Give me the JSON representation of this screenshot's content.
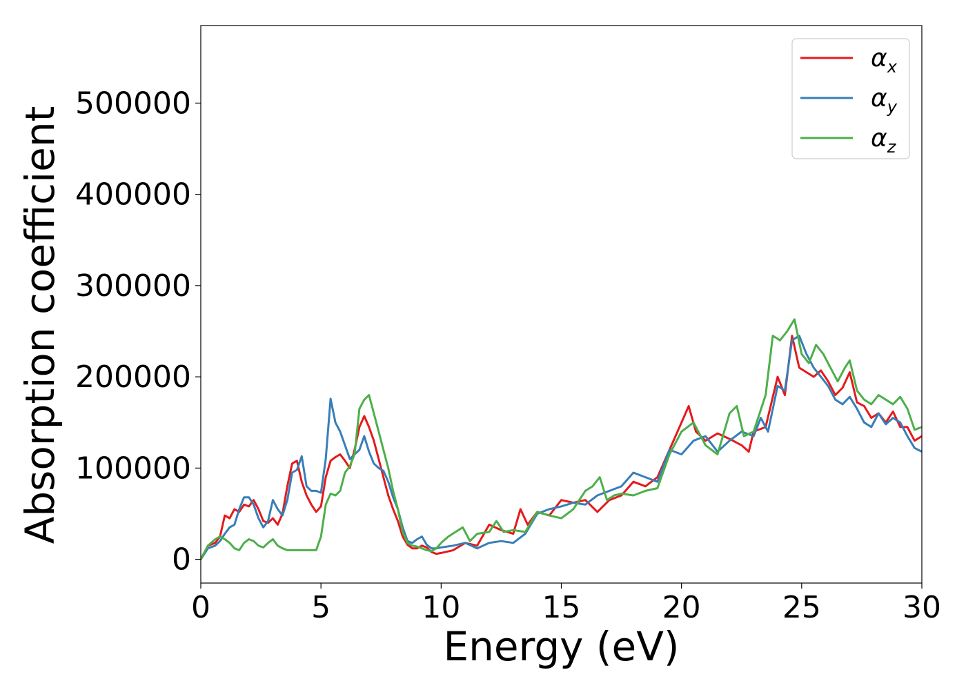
{
  "chart_data": {
    "type": "line",
    "title": "",
    "xlabel": "Energy (eV)",
    "ylabel": "Absorption coefficient",
    "xlim": [
      0,
      30
    ],
    "ylim": [
      -26000,
      585000
    ],
    "xticks": [
      0,
      5,
      10,
      15,
      20,
      25,
      30
    ],
    "yticks": [
      0,
      100000,
      200000,
      300000,
      400000,
      500000
    ],
    "grid": false,
    "legend_position": "top-right",
    "series": [
      {
        "name": "α",
        "subscript": "x",
        "color": "#e41a1c",
        "points": [
          [
            0,
            0
          ],
          [
            0.3,
            15000
          ],
          [
            0.6,
            18000
          ],
          [
            0.8,
            25000
          ],
          [
            1.0,
            48000
          ],
          [
            1.2,
            45000
          ],
          [
            1.4,
            55000
          ],
          [
            1.6,
            52000
          ],
          [
            1.8,
            60000
          ],
          [
            2.0,
            58000
          ],
          [
            2.2,
            65000
          ],
          [
            2.4,
            55000
          ],
          [
            2.6,
            42000
          ],
          [
            2.8,
            40000
          ],
          [
            3.0,
            45000
          ],
          [
            3.2,
            38000
          ],
          [
            3.4,
            50000
          ],
          [
            3.6,
            80000
          ],
          [
            3.8,
            105000
          ],
          [
            4.0,
            108000
          ],
          [
            4.2,
            85000
          ],
          [
            4.4,
            70000
          ],
          [
            4.6,
            60000
          ],
          [
            4.8,
            52000
          ],
          [
            5.0,
            58000
          ],
          [
            5.2,
            90000
          ],
          [
            5.4,
            108000
          ],
          [
            5.6,
            112000
          ],
          [
            5.8,
            115000
          ],
          [
            6.0,
            108000
          ],
          [
            6.2,
            100000
          ],
          [
            6.4,
            120000
          ],
          [
            6.6,
            145000
          ],
          [
            6.8,
            157000
          ],
          [
            7.0,
            145000
          ],
          [
            7.2,
            130000
          ],
          [
            7.4,
            110000
          ],
          [
            7.6,
            90000
          ],
          [
            7.8,
            70000
          ],
          [
            8.0,
            55000
          ],
          [
            8.2,
            42000
          ],
          [
            8.4,
            25000
          ],
          [
            8.6,
            16000
          ],
          [
            8.8,
            12000
          ],
          [
            9.0,
            12000
          ],
          [
            9.2,
            15000
          ],
          [
            9.4,
            13000
          ],
          [
            9.6,
            8000
          ],
          [
            9.8,
            6000
          ],
          [
            10.0,
            7000
          ],
          [
            10.5,
            10000
          ],
          [
            11.0,
            18000
          ],
          [
            11.5,
            15000
          ],
          [
            12.0,
            38000
          ],
          [
            12.5,
            32000
          ],
          [
            13.0,
            28000
          ],
          [
            13.3,
            55000
          ],
          [
            13.6,
            38000
          ],
          [
            14.0,
            52000
          ],
          [
            14.5,
            48000
          ],
          [
            15.0,
            65000
          ],
          [
            15.5,
            62000
          ],
          [
            16.0,
            65000
          ],
          [
            16.5,
            52000
          ],
          [
            17.0,
            65000
          ],
          [
            17.5,
            70000
          ],
          [
            18.0,
            85000
          ],
          [
            18.5,
            80000
          ],
          [
            19.0,
            90000
          ],
          [
            19.5,
            120000
          ],
          [
            20.0,
            150000
          ],
          [
            20.3,
            168000
          ],
          [
            20.6,
            140000
          ],
          [
            21.0,
            130000
          ],
          [
            21.5,
            138000
          ],
          [
            22.0,
            132000
          ],
          [
            22.5,
            125000
          ],
          [
            22.8,
            118000
          ],
          [
            23.0,
            140000
          ],
          [
            23.5,
            145000
          ],
          [
            24.0,
            200000
          ],
          [
            24.3,
            180000
          ],
          [
            24.6,
            245000
          ],
          [
            24.9,
            210000
          ],
          [
            25.2,
            205000
          ],
          [
            25.5,
            200000
          ],
          [
            25.8,
            207000
          ],
          [
            26.1,
            195000
          ],
          [
            26.4,
            180000
          ],
          [
            26.7,
            188000
          ],
          [
            27.0,
            205000
          ],
          [
            27.3,
            172000
          ],
          [
            27.6,
            168000
          ],
          [
            27.9,
            155000
          ],
          [
            28.2,
            160000
          ],
          [
            28.5,
            150000
          ],
          [
            28.8,
            162000
          ],
          [
            29.1,
            145000
          ],
          [
            29.4,
            145000
          ],
          [
            29.7,
            130000
          ],
          [
            30.0,
            135000
          ]
        ]
      },
      {
        "name": "α",
        "subscript": "y",
        "color": "#377eb8",
        "points": [
          [
            0,
            0
          ],
          [
            0.3,
            12000
          ],
          [
            0.6,
            15000
          ],
          [
            0.8,
            20000
          ],
          [
            1.0,
            28000
          ],
          [
            1.2,
            35000
          ],
          [
            1.4,
            38000
          ],
          [
            1.6,
            55000
          ],
          [
            1.8,
            68000
          ],
          [
            2.0,
            68000
          ],
          [
            2.2,
            60000
          ],
          [
            2.4,
            45000
          ],
          [
            2.6,
            35000
          ],
          [
            2.8,
            42000
          ],
          [
            3.0,
            65000
          ],
          [
            3.2,
            55000
          ],
          [
            3.4,
            48000
          ],
          [
            3.6,
            65000
          ],
          [
            3.8,
            95000
          ],
          [
            4.0,
            98000
          ],
          [
            4.2,
            113000
          ],
          [
            4.4,
            80000
          ],
          [
            4.6,
            75000
          ],
          [
            4.8,
            75000
          ],
          [
            5.0,
            73000
          ],
          [
            5.2,
            110000
          ],
          [
            5.4,
            176000
          ],
          [
            5.6,
            150000
          ],
          [
            5.8,
            140000
          ],
          [
            6.0,
            125000
          ],
          [
            6.2,
            110000
          ],
          [
            6.4,
            115000
          ],
          [
            6.6,
            120000
          ],
          [
            6.8,
            135000
          ],
          [
            7.0,
            118000
          ],
          [
            7.2,
            105000
          ],
          [
            7.4,
            100000
          ],
          [
            7.6,
            97000
          ],
          [
            7.8,
            85000
          ],
          [
            8.0,
            68000
          ],
          [
            8.2,
            55000
          ],
          [
            8.4,
            35000
          ],
          [
            8.6,
            20000
          ],
          [
            8.8,
            18000
          ],
          [
            9.0,
            22000
          ],
          [
            9.2,
            25000
          ],
          [
            9.4,
            16000
          ],
          [
            9.6,
            12000
          ],
          [
            9.8,
            12000
          ],
          [
            10.0,
            13000
          ],
          [
            10.5,
            15000
          ],
          [
            11.0,
            18000
          ],
          [
            11.5,
            12000
          ],
          [
            12.0,
            18000
          ],
          [
            12.5,
            20000
          ],
          [
            13.0,
            18000
          ],
          [
            13.5,
            28000
          ],
          [
            14.0,
            50000
          ],
          [
            14.5,
            55000
          ],
          [
            15.0,
            58000
          ],
          [
            15.5,
            62000
          ],
          [
            16.0,
            60000
          ],
          [
            16.5,
            70000
          ],
          [
            17.0,
            75000
          ],
          [
            17.5,
            80000
          ],
          [
            18.0,
            95000
          ],
          [
            18.5,
            90000
          ],
          [
            19.0,
            85000
          ],
          [
            19.5,
            120000
          ],
          [
            20.0,
            115000
          ],
          [
            20.5,
            130000
          ],
          [
            21.0,
            135000
          ],
          [
            21.5,
            118000
          ],
          [
            22.0,
            130000
          ],
          [
            22.5,
            140000
          ],
          [
            23.0,
            135000
          ],
          [
            23.3,
            155000
          ],
          [
            23.6,
            140000
          ],
          [
            24.0,
            190000
          ],
          [
            24.3,
            185000
          ],
          [
            24.6,
            240000
          ],
          [
            24.9,
            245000
          ],
          [
            25.2,
            225000
          ],
          [
            25.5,
            210000
          ],
          [
            25.8,
            200000
          ],
          [
            26.1,
            190000
          ],
          [
            26.4,
            175000
          ],
          [
            26.7,
            170000
          ],
          [
            27.0,
            178000
          ],
          [
            27.3,
            165000
          ],
          [
            27.6,
            150000
          ],
          [
            27.9,
            145000
          ],
          [
            28.2,
            160000
          ],
          [
            28.5,
            148000
          ],
          [
            28.8,
            155000
          ],
          [
            29.1,
            150000
          ],
          [
            29.4,
            135000
          ],
          [
            29.7,
            122000
          ],
          [
            30.0,
            118000
          ]
        ]
      },
      {
        "name": "α",
        "subscript": "z",
        "color": "#4daf4a",
        "points": [
          [
            0,
            0
          ],
          [
            0.3,
            15000
          ],
          [
            0.6,
            22000
          ],
          [
            0.8,
            25000
          ],
          [
            1.0,
            22000
          ],
          [
            1.2,
            18000
          ],
          [
            1.4,
            12000
          ],
          [
            1.6,
            10000
          ],
          [
            1.8,
            18000
          ],
          [
            2.0,
            22000
          ],
          [
            2.2,
            20000
          ],
          [
            2.4,
            15000
          ],
          [
            2.6,
            13000
          ],
          [
            2.8,
            18000
          ],
          [
            3.0,
            22000
          ],
          [
            3.2,
            15000
          ],
          [
            3.4,
            12000
          ],
          [
            3.6,
            10000
          ],
          [
            4.0,
            10000
          ],
          [
            4.4,
            10000
          ],
          [
            4.8,
            10000
          ],
          [
            5.0,
            25000
          ],
          [
            5.2,
            60000
          ],
          [
            5.4,
            72000
          ],
          [
            5.6,
            70000
          ],
          [
            5.8,
            75000
          ],
          [
            6.0,
            95000
          ],
          [
            6.2,
            102000
          ],
          [
            6.4,
            115000
          ],
          [
            6.6,
            165000
          ],
          [
            6.8,
            175000
          ],
          [
            7.0,
            180000
          ],
          [
            7.2,
            160000
          ],
          [
            7.4,
            140000
          ],
          [
            7.6,
            120000
          ],
          [
            7.8,
            100000
          ],
          [
            8.0,
            75000
          ],
          [
            8.2,
            55000
          ],
          [
            8.4,
            30000
          ],
          [
            8.6,
            18000
          ],
          [
            8.8,
            15000
          ],
          [
            9.0,
            14000
          ],
          [
            9.2,
            12000
          ],
          [
            9.4,
            10000
          ],
          [
            9.6,
            9000
          ],
          [
            9.8,
            12000
          ],
          [
            10.0,
            18000
          ],
          [
            10.3,
            25000
          ],
          [
            10.6,
            30000
          ],
          [
            10.9,
            35000
          ],
          [
            11.2,
            20000
          ],
          [
            11.5,
            28000
          ],
          [
            12.0,
            30000
          ],
          [
            12.3,
            42000
          ],
          [
            12.6,
            30000
          ],
          [
            13.0,
            32000
          ],
          [
            13.5,
            30000
          ],
          [
            14.0,
            52000
          ],
          [
            14.5,
            48000
          ],
          [
            15.0,
            45000
          ],
          [
            15.5,
            55000
          ],
          [
            16.0,
            75000
          ],
          [
            16.3,
            80000
          ],
          [
            16.6,
            90000
          ],
          [
            16.9,
            65000
          ],
          [
            17.2,
            70000
          ],
          [
            17.5,
            72000
          ],
          [
            18.0,
            70000
          ],
          [
            18.5,
            75000
          ],
          [
            19.0,
            78000
          ],
          [
            19.5,
            115000
          ],
          [
            20.0,
            140000
          ],
          [
            20.5,
            150000
          ],
          [
            21.0,
            125000
          ],
          [
            21.5,
            115000
          ],
          [
            22.0,
            160000
          ],
          [
            22.3,
            168000
          ],
          [
            22.6,
            135000
          ],
          [
            23.0,
            140000
          ],
          [
            23.5,
            180000
          ],
          [
            23.8,
            245000
          ],
          [
            24.1,
            240000
          ],
          [
            24.4,
            250000
          ],
          [
            24.7,
            263000
          ],
          [
            25.0,
            225000
          ],
          [
            25.3,
            215000
          ],
          [
            25.6,
            235000
          ],
          [
            25.9,
            225000
          ],
          [
            26.2,
            210000
          ],
          [
            26.5,
            195000
          ],
          [
            26.8,
            210000
          ],
          [
            27.0,
            218000
          ],
          [
            27.3,
            185000
          ],
          [
            27.6,
            175000
          ],
          [
            27.9,
            170000
          ],
          [
            28.2,
            180000
          ],
          [
            28.5,
            175000
          ],
          [
            28.8,
            170000
          ],
          [
            29.1,
            178000
          ],
          [
            29.4,
            165000
          ],
          [
            29.7,
            142000
          ],
          [
            30.0,
            145000
          ]
        ]
      }
    ]
  }
}
